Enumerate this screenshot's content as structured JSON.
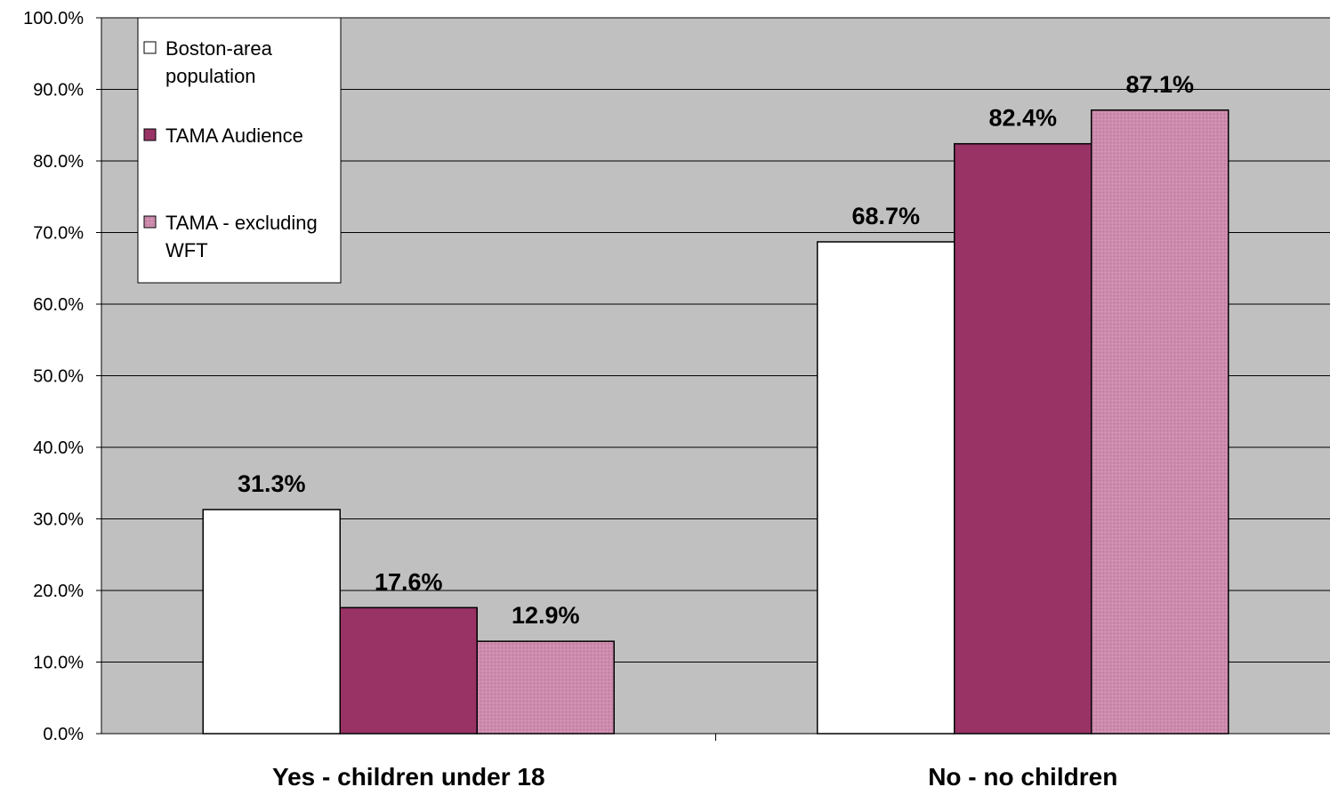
{
  "chart_data": {
    "type": "bar",
    "title": "",
    "xlabel": "",
    "ylabel": "",
    "ylim": [
      0,
      100
    ],
    "ytick_step": 10,
    "ytick_format": "percent_1dp",
    "categories": [
      "Yes - children under 18",
      "No - no children"
    ],
    "series": [
      {
        "name": "Boston-area population",
        "values": [
          31.3,
          68.7
        ],
        "color": "#ffffff",
        "label_lines": [
          "Boston-area",
          "population"
        ]
      },
      {
        "name": "TAMA Audience",
        "values": [
          17.6,
          82.4
        ],
        "color": "#993366",
        "label_lines": [
          "TAMA Audience"
        ]
      },
      {
        "name": "TAMA - excluding WFT",
        "values": [
          12.9,
          87.1
        ],
        "color": "#cc8aac",
        "label_lines": [
          "TAMA - excluding",
          "WFT"
        ]
      }
    ],
    "data_labels": [
      [
        "31.3%",
        "68.7%"
      ],
      [
        "17.6%",
        "82.4%"
      ],
      [
        "12.9%",
        "87.1%"
      ]
    ],
    "grid": true,
    "plot_background": "#c0c0c0",
    "legend_position": "top-left"
  }
}
